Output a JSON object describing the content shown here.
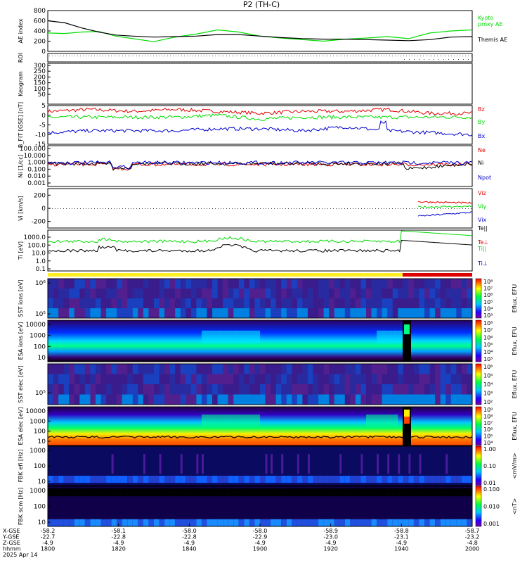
{
  "title": "P2 (TH-C)",
  "date_label": "2025 Apr 14",
  "colors": {
    "black": "#000000",
    "red": "#e00000",
    "green": "#00dd00",
    "blue": "#0000cc",
    "yellow": "#ffee22",
    "bar_red": "#dd0000"
  },
  "chart_data": [
    {
      "panel": "ae",
      "type": "line",
      "ylabel": "AE index",
      "yticks": [
        "800",
        "600",
        "400",
        "200",
        "0"
      ],
      "ylim": [
        0,
        800
      ],
      "series": [
        {
          "name": "Kyoto proxy AE",
          "color": "#00dd00",
          "x": [
            0,
            0.04,
            0.08,
            0.12,
            0.16,
            0.2,
            0.25,
            0.3,
            0.35,
            0.4,
            0.45,
            0.5,
            0.55,
            0.6,
            0.65,
            0.7,
            0.75,
            0.8,
            0.85,
            0.9,
            0.95,
            1
          ],
          "y": [
            360,
            350,
            380,
            390,
            300,
            250,
            190,
            280,
            340,
            420,
            380,
            300,
            260,
            230,
            200,
            240,
            260,
            290,
            250,
            360,
            400,
            420
          ]
        },
        {
          "name": "Themis AE",
          "color": "#000000",
          "x": [
            0,
            0.04,
            0.08,
            0.12,
            0.16,
            0.2,
            0.25,
            0.3,
            0.35,
            0.4,
            0.45,
            0.5,
            0.55,
            0.6,
            0.65,
            0.7,
            0.75,
            0.8,
            0.85,
            0.9,
            0.95,
            1
          ],
          "y": [
            600,
            560,
            460,
            380,
            320,
            300,
            280,
            290,
            300,
            330,
            330,
            300,
            270,
            250,
            240,
            240,
            230,
            220,
            210,
            230,
            280,
            290
          ]
        }
      ],
      "legend": [
        "Kyoto",
        "proxy AE",
        "Themis AE"
      ]
    },
    {
      "panel": "roi",
      "type": "line",
      "ylabel": "ROI",
      "yticks": []
    },
    {
      "panel": "keogram",
      "type": "heatmap",
      "ylabel": "Keogram",
      "yticks": [
        "300",
        "250",
        "200",
        "150",
        "100",
        "50"
      ]
    },
    {
      "panel": "bfield",
      "type": "line",
      "ylabel": "B_FIT [GSE] [nT]",
      "yticks": [
        "5",
        "0",
        "-5",
        "-10",
        "-15"
      ],
      "ylim": [
        -15,
        5
      ],
      "series": [
        {
          "name": "Bz",
          "color": "#e00000",
          "x": [
            0,
            0.1,
            0.2,
            0.3,
            0.4,
            0.5,
            0.6,
            0.7,
            0.8,
            0.9,
            1
          ],
          "y": [
            2,
            3,
            2,
            3,
            2,
            1,
            2,
            2,
            3,
            1,
            1
          ]
        },
        {
          "name": "By",
          "color": "#00dd00",
          "x": [
            0,
            0.1,
            0.2,
            0.3,
            0.4,
            0.5,
            0.6,
            0.7,
            0.8,
            0.9,
            1
          ],
          "y": [
            -1,
            -1,
            -1,
            -1,
            0,
            -2,
            -1,
            -1,
            -1,
            -1,
            -1
          ]
        },
        {
          "name": "Bx",
          "color": "#0000cc",
          "x": [
            0,
            0.1,
            0.2,
            0.3,
            0.4,
            0.5,
            0.6,
            0.7,
            0.8,
            0.9,
            1
          ],
          "y": [
            -9,
            -8,
            -8,
            -8,
            -7,
            -7,
            -8,
            -6,
            -8,
            -9,
            -10
          ]
        }
      ],
      "legend": [
        "Bz",
        "By",
        "Bx"
      ]
    },
    {
      "panel": "density",
      "type": "line",
      "ylabel": "Ni [1/cc]",
      "yticks": [
        "100.000",
        "10.000",
        "1.000",
        "0.100",
        "0.010",
        "0.001"
      ],
      "scale": "log",
      "series": [
        {
          "name": "Ne",
          "color": "#e00000"
        },
        {
          "name": "Ni",
          "color": "#000000"
        },
        {
          "name": "Npot",
          "color": "#0000cc"
        }
      ],
      "legend": [
        "Ne",
        "Ni",
        "Npot"
      ]
    },
    {
      "panel": "velocity",
      "type": "line",
      "ylabel": "Vi [km/s]",
      "yticks": [
        "200",
        "0",
        "-200"
      ],
      "ylim": [
        -300,
        300
      ],
      "series": [
        {
          "name": "Viz",
          "color": "#e00000"
        },
        {
          "name": "Viy",
          "color": "#00dd00"
        },
        {
          "name": "Vix",
          "color": "#0000cc"
        }
      ],
      "legend": [
        "Viz",
        "Viy",
        "Vix"
      ]
    },
    {
      "panel": "temperature",
      "type": "line",
      "ylabel": "Ti [eV]",
      "yticks": [
        "1000.0",
        "100.0",
        "10.0",
        "1.0",
        "0.1"
      ],
      "scale": "log",
      "legend": [
        "Te||",
        "Te⊥",
        "Ti||",
        "Ti⊥"
      ]
    },
    {
      "panel": "sst_ions",
      "type": "heatmap",
      "ylabel": "SST ions [eV]",
      "yticks": [
        "10⁶",
        "10⁵"
      ],
      "colorbar": {
        "label": "Eflux, EFU",
        "ticks": [
          "10⁸",
          "10⁷",
          "10⁶",
          "10⁵",
          "10⁴",
          "10³"
        ]
      }
    },
    {
      "panel": "esa_ions",
      "type": "heatmap",
      "ylabel": "ESA ions [eV]",
      "yticks": [
        "10000",
        "1000",
        "100",
        "10"
      ],
      "colorbar": {
        "label": "Eflux, EFU",
        "ticks": [
          "10⁸",
          "10⁷",
          "10⁶",
          "10⁵",
          "10⁴",
          "10³"
        ]
      }
    },
    {
      "panel": "sst_elec",
      "type": "heatmap",
      "ylabel": "SST elec [eV]",
      "yticks": [
        "10⁵"
      ],
      "colorbar": {
        "label": "Eflux, EFU",
        "ticks": [
          "10⁶",
          "10⁵",
          "10⁴",
          "10³",
          "10²"
        ]
      }
    },
    {
      "panel": "esa_elec",
      "type": "heatmap",
      "ylabel": "ESA elec [eV]",
      "yticks": [
        "10000",
        "1000",
        "100",
        "10"
      ],
      "colorbar": {
        "label": "Eflux, EFU",
        "ticks": [
          "10⁹",
          "10⁸",
          "10⁷",
          "10⁶",
          "10⁵",
          "10⁴"
        ]
      }
    },
    {
      "panel": "fbk_e",
      "type": "heatmap",
      "ylabel": "FBK efi [Hz]",
      "yticks": [
        "1000",
        "100",
        "10"
      ],
      "colorbar": {
        "label": "<mV/m>",
        "ticks": [
          "1.00",
          "0.10",
          "0.01"
        ]
      }
    },
    {
      "panel": "fbk_b",
      "type": "heatmap",
      "ylabel": "FBK scm [Hz]",
      "yticks": [
        "1000",
        "100",
        "10"
      ],
      "colorbar": {
        "label": "<nT>",
        "ticks": [
          "0.100",
          "0.010",
          "0.001"
        ]
      }
    }
  ],
  "time_axis": {
    "row_labels": [
      "X-GSE",
      "Y-GSE",
      "Z-GSE",
      "hhmm"
    ],
    "columns": [
      {
        "X-GSE": "-58.2",
        "Y-GSE": "-22.7",
        "Z-GSE": "-4.9",
        "hhmm": "1800"
      },
      {
        "X-GSE": "-58.1",
        "Y-GSE": "-22.8",
        "Z-GSE": "-4.9",
        "hhmm": "1820"
      },
      {
        "X-GSE": "-58.0",
        "Y-GSE": "-22.8",
        "Z-GSE": "-4.9",
        "hhmm": "1840"
      },
      {
        "X-GSE": "-58.0",
        "Y-GSE": "-22.9",
        "Z-GSE": "-4.9",
        "hhmm": "1900"
      },
      {
        "X-GSE": "-58.9",
        "Y-GSE": "-23.0",
        "Z-GSE": "-4.9",
        "hhmm": "1920"
      },
      {
        "X-GSE": "-58.8",
        "Y-GSE": "-23.1",
        "Z-GSE": "-4.9",
        "hhmm": "1940"
      },
      {
        "X-GSE": "-58.7",
        "Y-GSE": "-23.2",
        "Z-GSE": "-4.8",
        "hhmm": "2000"
      }
    ]
  }
}
